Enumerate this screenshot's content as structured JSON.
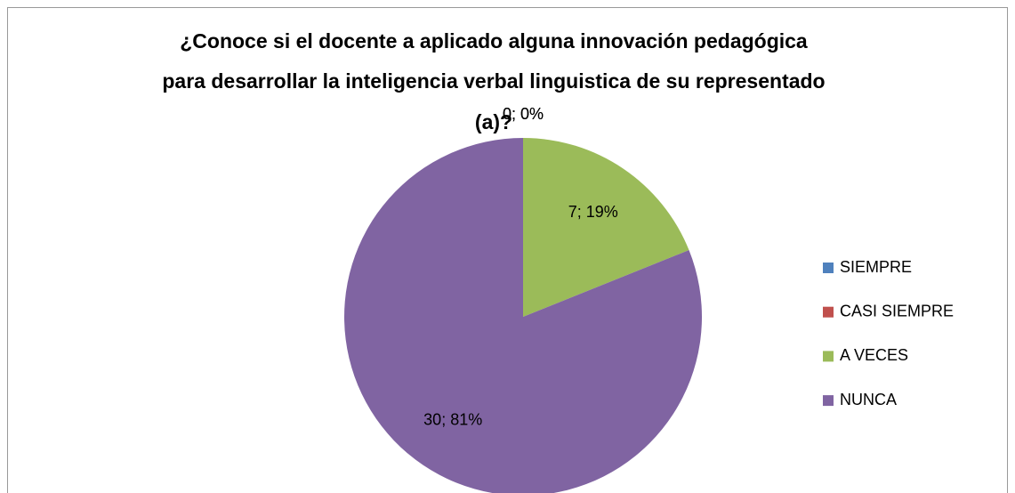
{
  "chart_data": {
    "type": "pie",
    "title": [
      "¿Conoce si el docente a aplicado alguna innovación pedagógica",
      "para desarrollar la inteligencia verbal linguistica de su representado",
      "(a)?"
    ],
    "categories": [
      "SIEMPRE",
      "CASI SIEMPRE",
      "A VECES",
      "NUNCA"
    ],
    "values": [
      0,
      0,
      7,
      30
    ],
    "value_labels": [
      "0; 0%",
      "0; 0%",
      "7; 19%",
      "30; 81%"
    ],
    "colors": [
      "#4f81bd",
      "#c0504d",
      "#9bbb59",
      "#8064a2"
    ],
    "legend": "right"
  }
}
